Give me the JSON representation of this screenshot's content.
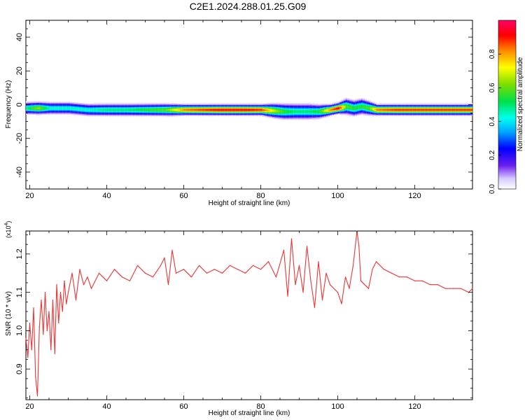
{
  "title": "C2E1.2024.288.01.25.G09",
  "chart_data": [
    {
      "type": "heatmap",
      "xlabel": "Height of straight line (km)",
      "ylabel": "Frequency (Hz)",
      "xlim": [
        19,
        135
      ],
      "ylim": [
        -50,
        50
      ],
      "xticks": [
        20,
        40,
        60,
        80,
        100,
        120
      ],
      "yticks": [
        -40,
        -20,
        0,
        20,
        40
      ],
      "colorbar": {
        "label": "Normalized spectral amplitude",
        "range": [
          0,
          1
        ],
        "ticks": [
          "0.0",
          "0.2",
          "0.4",
          "0.6",
          "0.8"
        ]
      },
      "ridge": {
        "height_km": [
          19,
          22,
          25,
          30,
          35,
          40,
          45,
          50,
          55,
          60,
          65,
          70,
          75,
          80,
          83,
          86,
          89,
          92,
          95,
          98,
          100,
          102,
          104,
          106,
          108,
          110,
          115,
          120,
          125,
          130,
          135
        ],
        "frequency_hz": [
          -2,
          -2,
          -2,
          -2,
          -3,
          -3,
          -3,
          -3,
          -3,
          -3,
          -3,
          -3,
          -3,
          -3,
          -3.5,
          -4,
          -4,
          -4,
          -4,
          -3,
          -2,
          -1,
          -2,
          -1,
          -2,
          -3,
          -3,
          -3,
          -3,
          -3,
          -3
        ],
        "amplitude": [
          0.5,
          0.65,
          0.45,
          0.45,
          0.45,
          0.5,
          0.5,
          0.55,
          0.6,
          0.85,
          0.9,
          0.95,
          0.95,
          0.9,
          0.7,
          0.55,
          0.5,
          0.5,
          0.55,
          0.85,
          0.95,
          0.6,
          0.55,
          0.55,
          0.6,
          0.85,
          0.9,
          0.9,
          0.9,
          0.9,
          0.9
        ],
        "halfwidth_hz": [
          3.5,
          3.5,
          3.5,
          3.5,
          3.5,
          3.5,
          3.5,
          3.5,
          3.5,
          3,
          3,
          3,
          3,
          3,
          4,
          4.5,
          4.5,
          4.5,
          4,
          3,
          3,
          4.5,
          4.5,
          4.5,
          4,
          3,
          3,
          3,
          3,
          3,
          3
        ]
      }
    },
    {
      "type": "line",
      "xlabel": "Height of straight line (km)",
      "ylabel": "SNR (10 * v/v)",
      "yscale_label": "(x10",
      "yscale_exponent": "4",
      "yscale_close": ")",
      "xlim": [
        19,
        135
      ],
      "ylim": [
        0.82,
        1.26
      ],
      "xticks": [
        20,
        40,
        60,
        80,
        100,
        120
      ],
      "yticks": [
        0.9,
        1.0,
        1.1,
        1.2
      ],
      "ytick_labels": [
        "0.9",
        "1.0",
        "1.1",
        "1.2"
      ],
      "color": "#ee3333",
      "series": [
        {
          "x": [
            19,
            19.5,
            20,
            20.5,
            21,
            21.5,
            22,
            22.5,
            23,
            23.5,
            24,
            24.5,
            25,
            25.5,
            26,
            26.5,
            27,
            27.5,
            28,
            28.5,
            29,
            29.5,
            30,
            31,
            32,
            33,
            34,
            35,
            36,
            38,
            40,
            42,
            44,
            46,
            48,
            50,
            52,
            54,
            55,
            56,
            57,
            58,
            60,
            62,
            64,
            66,
            68,
            70,
            72,
            74,
            76,
            78,
            80,
            82,
            84,
            86,
            87,
            88,
            89,
            90,
            91,
            92,
            93,
            94,
            95,
            96,
            97,
            98,
            100,
            101,
            102,
            103,
            104,
            105,
            105.5,
            106,
            107,
            108,
            109,
            110,
            112,
            114,
            116,
            118,
            120,
            122,
            124,
            126,
            128,
            130,
            132,
            134,
            135
          ],
          "y": [
            0.98,
            0.93,
            1.02,
            0.95,
            1.06,
            0.88,
            0.83,
            1.01,
            1.08,
            0.99,
            1.1,
            1.0,
            1.05,
            0.95,
            1.08,
            0.94,
            1.12,
            1.02,
            1.1,
            1.05,
            1.13,
            1.07,
            1.1,
            1.15,
            1.08,
            1.16,
            1.12,
            1.14,
            1.11,
            1.15,
            1.13,
            1.16,
            1.14,
            1.13,
            1.17,
            1.15,
            1.14,
            1.17,
            1.19,
            1.12,
            1.21,
            1.15,
            1.16,
            1.14,
            1.17,
            1.15,
            1.16,
            1.15,
            1.17,
            1.16,
            1.15,
            1.17,
            1.16,
            1.18,
            1.14,
            1.21,
            1.09,
            1.24,
            1.12,
            1.17,
            1.1,
            1.22,
            1.13,
            1.06,
            1.18,
            1.08,
            1.15,
            1.12,
            1.1,
            1.07,
            1.14,
            1.11,
            1.17,
            1.26,
            1.22,
            1.13,
            1.12,
            1.11,
            1.16,
            1.18,
            1.16,
            1.15,
            1.14,
            1.14,
            1.13,
            1.13,
            1.12,
            1.12,
            1.11,
            1.11,
            1.11,
            1.1,
            1.11
          ]
        }
      ]
    }
  ]
}
